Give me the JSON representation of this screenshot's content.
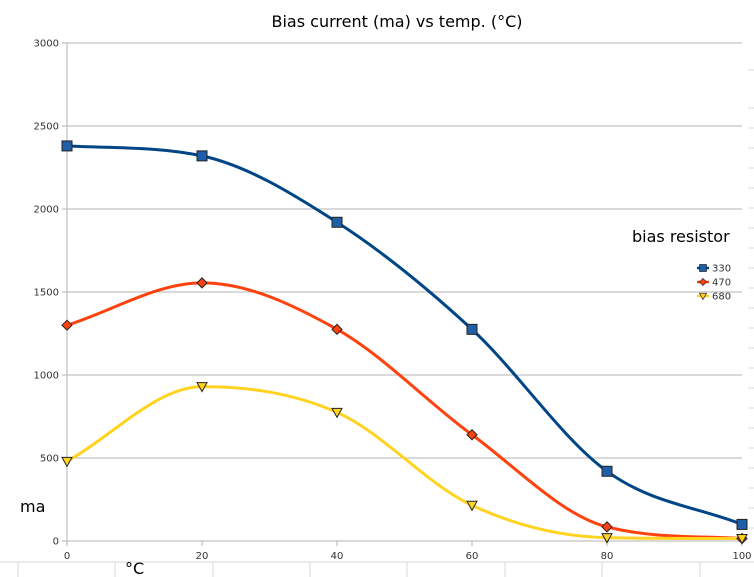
{
  "chart_data": {
    "type": "line",
    "title": "Bias current (ma) vs temp. (°C)",
    "xlabel": "°C",
    "ylabel": "ma",
    "x": [
      0,
      20,
      40,
      60,
      80,
      100
    ],
    "xlim": [
      0,
      100
    ],
    "ylim": [
      0,
      3000
    ],
    "xticks": [
      0,
      20,
      40,
      60,
      80,
      100
    ],
    "yticks": [
      0,
      500,
      1000,
      1500,
      2000,
      2500,
      3000
    ],
    "grid": "horizontal",
    "legend": {
      "title": "bias resistor",
      "position": "right"
    },
    "series": [
      {
        "name": "330",
        "values": [
          2380,
          2320,
          1920,
          1275,
          420,
          100
        ],
        "color": "#004586",
        "fill": "#1f5fa8",
        "marker": "square"
      },
      {
        "name": "470",
        "values": [
          1300,
          1555,
          1275,
          640,
          85,
          15
        ],
        "color": "#ff420e",
        "fill": "#ff420e",
        "marker": "diamond"
      },
      {
        "name": "680",
        "values": [
          480,
          930,
          775,
          215,
          20,
          15
        ],
        "color": "#ffd320",
        "fill": "#ffd320",
        "marker": "triangle-down"
      }
    ]
  }
}
